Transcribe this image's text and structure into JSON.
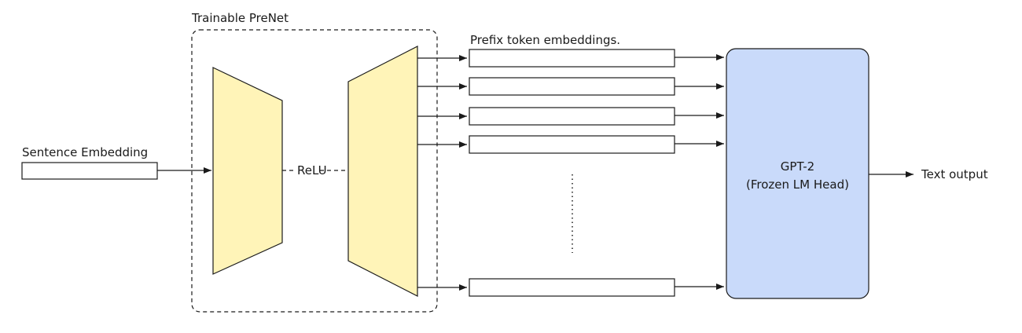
{
  "input": {
    "label": "Sentence Embedding"
  },
  "prenet": {
    "title": "Trainable PreNet",
    "activation_label": "ReLU"
  },
  "prefix": {
    "label": "Prefix token embeddings."
  },
  "lm": {
    "line1": "GPT-2",
    "line2": "(Frozen LM Head)"
  },
  "output": {
    "label": "Text output"
  },
  "colors": {
    "trapezoid_fill": "#fff4b8",
    "lm_fill": "#c9dafa",
    "stroke": "#1a1a1a"
  }
}
